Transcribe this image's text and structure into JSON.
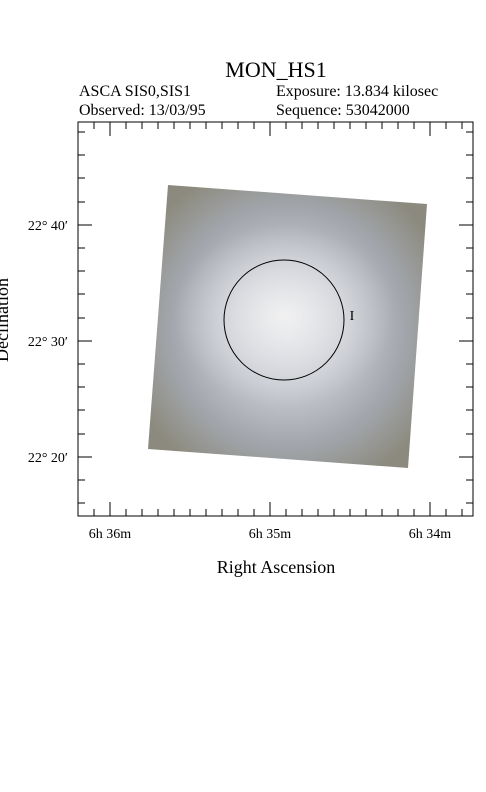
{
  "header": {
    "title": "MON_HS1",
    "instrument": "ASCA SIS0,SIS1",
    "exposure": "Exposure: 13.834 kilosec",
    "observed": "Observed: 13/03/95",
    "sequence": "Sequence: 53042000"
  },
  "axes": {
    "x_label": "Right Ascension",
    "y_label": "Declination",
    "x_ticks": [
      "6h 36m",
      "6h 35m",
      "6h 34m"
    ],
    "y_ticks": [
      "22° 40′",
      "22° 30′",
      "22° 20′"
    ]
  },
  "marker": "I"
}
